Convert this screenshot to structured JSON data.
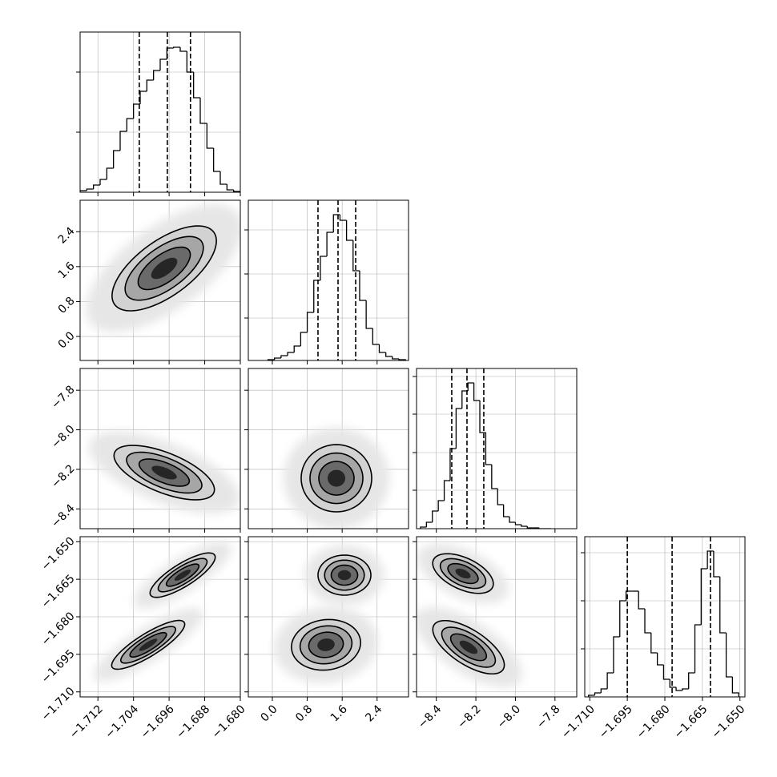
{
  "chart_data": {
    "type": "corner",
    "grid": true,
    "hist_color": "#000000",
    "parameters": [
      {
        "lim": [
          -1.716,
          -1.68
        ],
        "ticks": [
          {
            "value": -1.712,
            "label": "−1.712"
          },
          {
            "value": -1.704,
            "label": "−1.704"
          },
          {
            "value": -1.696,
            "label": "−1.696"
          },
          {
            "value": -1.688,
            "label": "−1.688"
          },
          {
            "value": -1.68,
            "label": "−1.680"
          }
        ],
        "quantiles": [
          -1.7027,
          -1.6964,
          -1.6912
        ],
        "hist": {
          "bins": [
            -1.716,
            -1.7145,
            -1.713,
            -1.7115,
            -1.71,
            -1.7085,
            -1.707,
            -1.7055,
            -1.704,
            -1.7025,
            -1.701,
            -1.6995,
            -1.698,
            -1.6965,
            -1.695,
            -1.6935,
            -1.692,
            -1.6905,
            -1.689,
            -1.6875,
            -1.686,
            -1.6845,
            -1.683,
            -1.6815,
            -1.68
          ],
          "counts": [
            2,
            4,
            9,
            16,
            30,
            52,
            76,
            92,
            110,
            126,
            140,
            152,
            166,
            180,
            181,
            176,
            150,
            118,
            86,
            55,
            26,
            10,
            3,
            1
          ],
          "ylim": [
            0,
            200
          ],
          "yticks": [
            75,
            150
          ]
        }
      },
      {
        "lim": [
          -0.55,
          3.12
        ],
        "ticks": [
          {
            "value": 0,
            "label": "0.0"
          },
          0.8,
          1.6,
          2.4
        ],
        "quantiles": [
          1.046,
          1.505,
          1.909
        ],
        "hist": {
          "bins": [
            -0.1,
            0.05,
            0.2,
            0.35,
            0.5,
            0.65,
            0.8,
            0.95,
            1.1,
            1.25,
            1.4,
            1.55,
            1.7,
            1.85,
            2.0,
            2.15,
            2.3,
            2.45,
            2.6,
            2.75,
            2.9,
            3.05
          ],
          "counts": [
            1,
            3,
            6,
            10,
            18,
            35,
            60,
            100,
            130,
            160,
            182,
            175,
            150,
            112,
            75,
            40,
            20,
            10,
            5,
            2,
            1
          ],
          "ylim": [
            0,
            200
          ],
          "yticks": [
            53,
            108,
            163
          ]
        }
      },
      {
        "lim": [
          -8.5,
          -7.69
        ],
        "ticks": [
          {
            "value": -8.4,
            "label": "−8.4"
          },
          {
            "value": -8.2,
            "label": "−8.2"
          },
          {
            "value": -8.0,
            "label": "−8.0"
          },
          {
            "value": -7.8,
            "label": "−7.8"
          }
        ],
        "quantiles": [
          -8.322,
          -8.245,
          -8.16
        ],
        "hist": {
          "bins": [
            -8.48,
            -8.45,
            -8.42,
            -8.39,
            -8.36,
            -8.33,
            -8.3,
            -8.27,
            -8.24,
            -8.21,
            -8.18,
            -8.15,
            -8.12,
            -8.09,
            -8.06,
            -8.03,
            -8,
            -7.97,
            -7.94,
            -7.91,
            -7.88,
            -7.85,
            -7.82
          ],
          "counts": [
            2,
            8,
            22,
            35,
            60,
            100,
            150,
            172,
            182,
            160,
            120,
            80,
            50,
            30,
            15,
            8,
            5,
            3,
            1,
            1,
            0,
            0
          ],
          "ylim": [
            0,
            200
          ],
          "yticks": [
            48,
            95,
            143,
            190
          ]
        }
      },
      {
        "lim": [
          -1.712,
          -1.648
        ],
        "ticks": [
          {
            "value": -1.71,
            "label": "−1.710"
          },
          {
            "value": -1.695,
            "label": "−1.695"
          },
          {
            "value": -1.68,
            "label": "−1.680"
          },
          {
            "value": -1.665,
            "label": "−1.665"
          },
          {
            "value": -1.65,
            "label": "−1.650"
          }
        ],
        "quantiles": [
          -1.695,
          -1.6771,
          -1.6618
        ],
        "hist": {
          "bins": [
            -1.7105,
            -1.708,
            -1.7055,
            -1.703,
            -1.7005,
            -1.698,
            -1.6955,
            -1.693,
            -1.6905,
            -1.688,
            -1.6855,
            -1.683,
            -1.6805,
            -1.678,
            -1.6755,
            -1.673,
            -1.6705,
            -1.668,
            -1.6655,
            -1.663,
            -1.6605,
            -1.658,
            -1.6555,
            -1.653,
            -1.6505
          ],
          "counts": [
            2,
            5,
            10,
            30,
            75,
            120,
            132,
            132,
            110,
            80,
            55,
            40,
            22,
            12,
            8,
            10,
            30,
            90,
            160,
            182,
            150,
            80,
            25,
            5
          ],
          "ylim": [
            0,
            200
          ],
          "yticks": [
            60,
            120,
            180
          ]
        }
      }
    ],
    "levels": [
      {
        "sigma": 3,
        "fill": "#e6e6e6"
      },
      {
        "sigma": 2,
        "fill": "#d2d2d2",
        "line": "#000000"
      },
      {
        "sigma": 1.5,
        "fill": "#a6a6a6",
        "line": "#000000"
      },
      {
        "sigma": 1,
        "fill": "#6a6a6a",
        "line": "#000000"
      },
      {
        "sigma": 0.5,
        "fill": "#262626"
      }
    ],
    "pairs": [
      {
        "x": 0,
        "y": 1,
        "modes": [
          {
            "center": [
              -1.6971,
              1.56
            ],
            "axis_a": [
              0.00558,
              0.413
            ],
            "axis_b": [
              0.0018,
              -0.257
            ]
          }
        ]
      },
      {
        "x": 0,
        "y": 2,
        "modes": [
          {
            "center": [
              -1.6971,
              -8.2165
            ],
            "axis_a": [
              0.00558,
              -0.0506
            ],
            "axis_b": [
              -0.00085,
              -0.0466
            ]
          }
        ]
      },
      {
        "x": 1,
        "y": 2,
        "modes": [
          {
            "center": [
              1.4685,
              -8.245
            ],
            "axis_a": [
              0.404,
              0
            ],
            "axis_b": [
              0,
              -0.085
            ]
          }
        ]
      },
      {
        "x": 0,
        "y": 3,
        "modes": [
          {
            "center": [
              -1.69296,
              -1.66336
            ],
            "axis_a": [
              0.0036,
              0.004
            ],
            "axis_b": [
              0.00067,
              -0.00192
            ]
          },
          {
            "center": [
              -1.7007,
              -1.6912
            ],
            "axis_a": [
              0.00405,
              0.00448
            ],
            "axis_b": [
              0.00067,
              -0.00192
            ]
          }
        ]
      },
      {
        "x": 1,
        "y": 3,
        "modes": [
          {
            "center": [
              1.652,
              -1.66336
            ],
            "axis_a": [
              0.303,
              0
            ],
            "axis_b": [
              0,
              -0.004
            ]
          },
          {
            "center": [
              1.23,
              -1.6912
            ],
            "axis_a": [
              0.385,
              0.0016
            ],
            "axis_b": [
              0.092,
              -0.0048
            ]
          }
        ]
      },
      {
        "x": 2,
        "y": 3,
        "modes": [
          {
            "center": [
              -8.265,
              -1.66272
            ],
            "axis_a": [
              0.0749,
              -0.00272
            ],
            "axis_b": [
              -0.0162,
              -0.00288
            ]
          },
          {
            "center": [
              -8.237,
              -1.69216
            ],
            "axis_a": [
              0.0871,
              -0.00448
            ],
            "axis_b": [
              -0.0243,
              -0.00288
            ]
          }
        ]
      }
    ]
  }
}
